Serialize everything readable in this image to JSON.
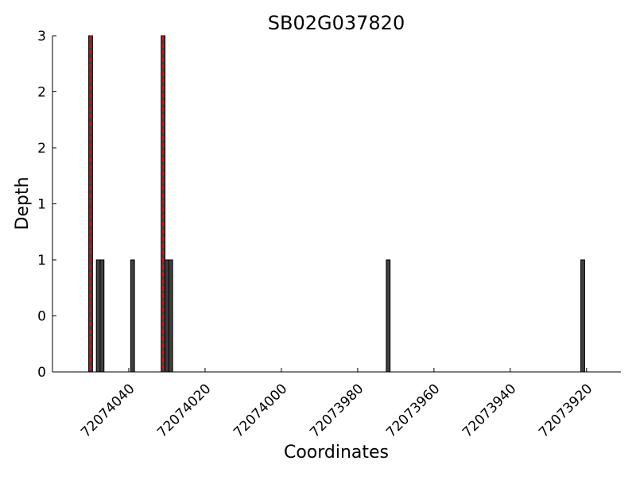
{
  "chart_data": {
    "type": "bar",
    "title": "SB02G037820",
    "xlabel": "Coordinates",
    "ylabel": "Depth",
    "x": [
      72074050,
      72074048,
      72074047,
      72074039,
      72074031,
      72074030,
      72074029,
      72073972,
      72073921
    ],
    "values": [
      3,
      1,
      1,
      1,
      3,
      1,
      1,
      1,
      1
    ],
    "color": "#404040",
    "edgecolor": "#000000",
    "markers": [
      72074050,
      72074031
    ],
    "marker_color": "#ff0000",
    "xlim": [
      72074060,
      72073911
    ],
    "xticks": [
      72074040,
      72074020,
      72074000,
      72073980,
      72073960,
      72073940,
      72073920
    ],
    "ylim": [
      0,
      3
    ],
    "yticks": [
      0,
      {
        "value": 0.5,
        "label": "0"
      },
      1,
      {
        "value": 1.5,
        "label": "1"
      },
      2,
      {
        "value": 2.5,
        "label": "2"
      },
      3
    ]
  }
}
